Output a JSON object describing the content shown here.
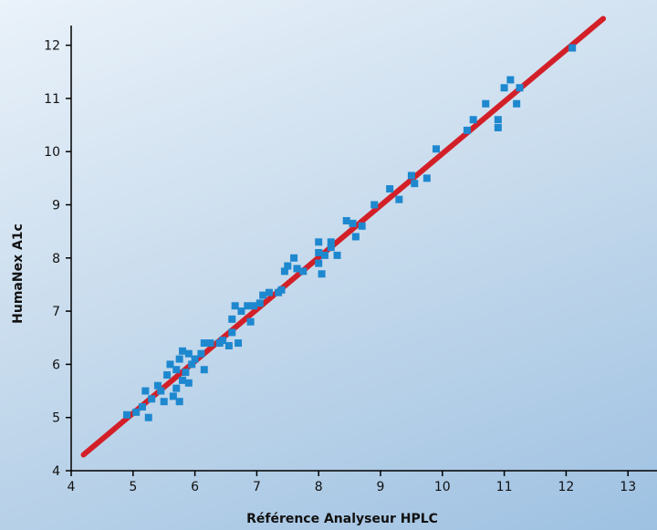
{
  "chart_data": {
    "type": "scatter",
    "xlabel": "Référence Analyseur HPLC",
    "ylabel": "HumaNex A1c",
    "xlim": [
      4,
      13
    ],
    "ylim": [
      4,
      12
    ],
    "x_ticks": [
      "4",
      "5",
      "6",
      "7",
      "8",
      "9",
      "10",
      "11",
      "12",
      "13"
    ],
    "y_ticks": [
      "4",
      "5",
      "6",
      "7",
      "8",
      "9",
      "10",
      "11",
      "12"
    ],
    "grid": false,
    "series": [
      {
        "type": "scatter",
        "color": "#1e88cf",
        "points": [
          [
            4.9,
            5.05
          ],
          [
            5.05,
            5.1
          ],
          [
            5.15,
            5.2
          ],
          [
            5.2,
            5.5
          ],
          [
            5.25,
            5.0
          ],
          [
            5.3,
            5.35
          ],
          [
            5.4,
            5.6
          ],
          [
            5.45,
            5.5
          ],
          [
            5.5,
            5.3
          ],
          [
            5.55,
            5.8
          ],
          [
            5.6,
            6.0
          ],
          [
            5.65,
            5.4
          ],
          [
            5.7,
            5.55
          ],
          [
            5.7,
            5.9
          ],
          [
            5.75,
            6.1
          ],
          [
            5.75,
            5.3
          ],
          [
            5.8,
            5.7
          ],
          [
            5.8,
            6.25
          ],
          [
            5.85,
            5.85
          ],
          [
            5.9,
            6.2
          ],
          [
            5.9,
            5.65
          ],
          [
            5.95,
            6.0
          ],
          [
            6.0,
            6.1
          ],
          [
            6.1,
            6.2
          ],
          [
            6.15,
            5.9
          ],
          [
            6.15,
            6.4
          ],
          [
            6.25,
            6.4
          ],
          [
            6.4,
            6.4
          ],
          [
            6.45,
            6.45
          ],
          [
            6.55,
            6.35
          ],
          [
            6.6,
            6.6
          ],
          [
            6.6,
            6.85
          ],
          [
            6.65,
            7.1
          ],
          [
            6.7,
            6.4
          ],
          [
            6.75,
            7.0
          ],
          [
            6.85,
            7.1
          ],
          [
            6.9,
            6.8
          ],
          [
            6.95,
            7.1
          ],
          [
            7.05,
            7.15
          ],
          [
            7.1,
            7.3
          ],
          [
            7.2,
            7.35
          ],
          [
            7.35,
            7.35
          ],
          [
            7.4,
            7.4
          ],
          [
            7.45,
            7.75
          ],
          [
            7.5,
            7.85
          ],
          [
            7.6,
            8.0
          ],
          [
            7.65,
            7.8
          ],
          [
            7.75,
            7.75
          ],
          [
            8.0,
            8.3
          ],
          [
            8.0,
            8.1
          ],
          [
            8.0,
            7.9
          ],
          [
            8.05,
            7.7
          ],
          [
            8.1,
            8.05
          ],
          [
            8.2,
            8.2
          ],
          [
            8.2,
            8.3
          ],
          [
            8.3,
            8.05
          ],
          [
            8.45,
            8.7
          ],
          [
            8.55,
            8.65
          ],
          [
            8.6,
            8.4
          ],
          [
            8.7,
            8.6
          ],
          [
            8.9,
            9.0
          ],
          [
            9.15,
            9.3
          ],
          [
            9.3,
            9.1
          ],
          [
            9.5,
            9.55
          ],
          [
            9.55,
            9.4
          ],
          [
            9.75,
            9.5
          ],
          [
            9.9,
            10.05
          ],
          [
            10.4,
            10.4
          ],
          [
            10.5,
            10.6
          ],
          [
            10.7,
            10.9
          ],
          [
            10.9,
            10.6
          ],
          [
            10.9,
            10.45
          ],
          [
            11.0,
            11.2
          ],
          [
            11.1,
            11.35
          ],
          [
            11.2,
            10.9
          ],
          [
            11.25,
            11.2
          ],
          [
            12.1,
            11.95
          ]
        ]
      },
      {
        "type": "line",
        "color": "#d32028",
        "x": [
          4.2,
          12.6
        ],
        "y": [
          4.3,
          12.5
        ]
      }
    ]
  }
}
